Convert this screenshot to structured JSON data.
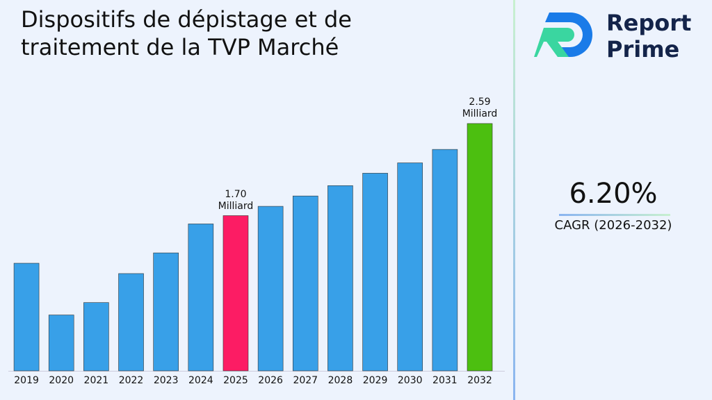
{
  "chart_data": {
    "type": "bar",
    "title": "Dispositifs de dépistage et de traitement de la TVP Marché",
    "categories": [
      "2019",
      "2020",
      "2021",
      "2022",
      "2023",
      "2024",
      "2025",
      "2026",
      "2027",
      "2028",
      "2029",
      "2030",
      "2031",
      "2032"
    ],
    "values": [
      1.24,
      0.74,
      0.86,
      1.14,
      1.34,
      1.62,
      1.7,
      1.79,
      1.89,
      1.99,
      2.11,
      2.21,
      2.34,
      2.59
    ],
    "value_labels": [
      null,
      null,
      null,
      null,
      null,
      null,
      "1.70 Milliard",
      null,
      null,
      null,
      null,
      null,
      null,
      "2.59 Milliard"
    ],
    "colors": [
      "#38a0e8",
      "#38a0e8",
      "#38a0e8",
      "#38a0e8",
      "#38a0e8",
      "#38a0e8",
      "#fc1c64",
      "#38a0e8",
      "#38a0e8",
      "#38a0e8",
      "#38a0e8",
      "#38a0e8",
      "#38a0e8",
      "#4cbf10"
    ],
    "ylim": [
      0.2,
      2.8
    ]
  },
  "side_panel": {
    "brand_line1": "Report",
    "brand_line2": "Prime",
    "cagr_value": "6.20%",
    "cagr_label": "CAGR (2026-2032)"
  }
}
